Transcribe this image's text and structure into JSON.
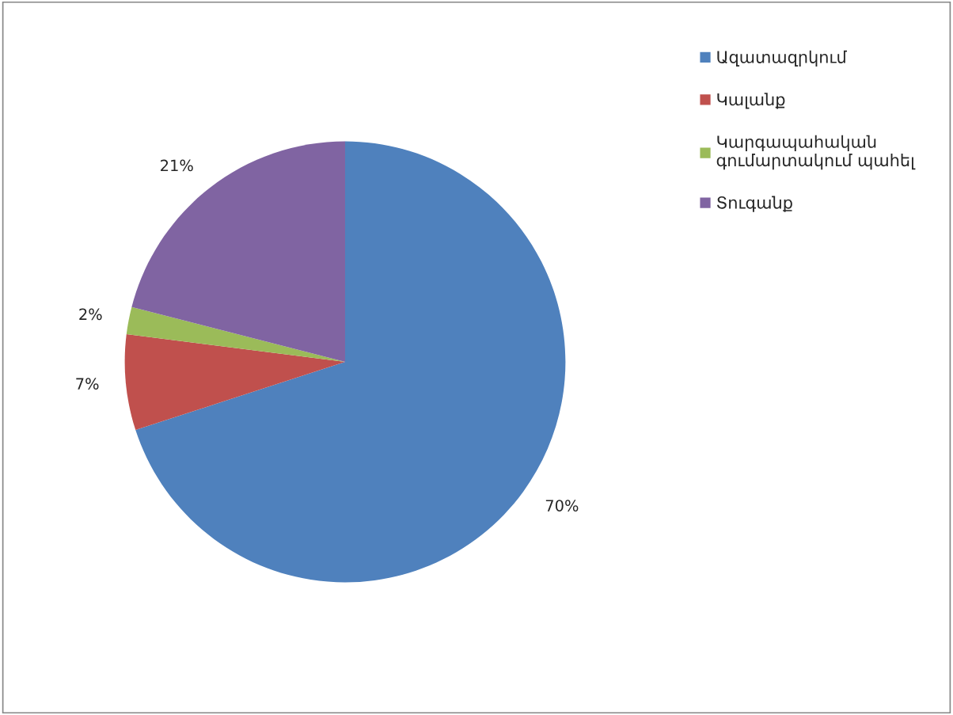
{
  "chart_data": {
    "type": "pie",
    "categories": [
      "Ազատազրկում",
      "Կալանք",
      "Կարգապահական գումարտակում պահել",
      "Տուգանք"
    ],
    "values": [
      70,
      7,
      2,
      21
    ],
    "colors": [
      "#4f81bd",
      "#c0504d",
      "#9bbb59",
      "#8064a2"
    ],
    "value_labels": [
      "70%",
      "7%",
      "2%",
      "21%"
    ],
    "legend": "right"
  }
}
